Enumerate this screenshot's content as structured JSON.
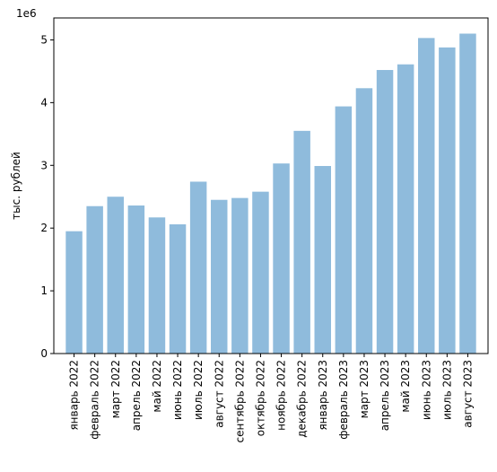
{
  "chart_data": {
    "type": "bar",
    "categories": [
      "январь 2022",
      "февраль 2022",
      "март 2022",
      "апрель 2022",
      "май 2022",
      "июнь 2022",
      "июль 2022",
      "август 2022",
      "сентябрь 2022",
      "октябрь 2022",
      "ноябрь 2022",
      "декабрь 2022",
      "январь 2023",
      "февраль 2023",
      "март 2023",
      "апрель 2023",
      "май 2023",
      "июнь 2023",
      "июль 2023",
      "август 2023"
    ],
    "values": [
      1950000,
      2350000,
      2500000,
      2360000,
      2170000,
      2060000,
      2740000,
      2450000,
      2480000,
      2580000,
      3030000,
      3550000,
      2990000,
      3940000,
      4230000,
      4520000,
      4610000,
      5030000,
      4880000,
      5100000
    ],
    "title": "",
    "xlabel": "",
    "ylabel": "тыс. рублей",
    "ylim": [
      0,
      5350000
    ],
    "y_ticks": [
      0,
      1000000,
      2000000,
      3000000,
      4000000,
      5000000
    ],
    "y_tick_labels": [
      "0",
      "1",
      "2",
      "3",
      "4",
      "5"
    ],
    "y_offset_label": "1e6",
    "bar_color": "#8fbbdc",
    "grid": false
  }
}
